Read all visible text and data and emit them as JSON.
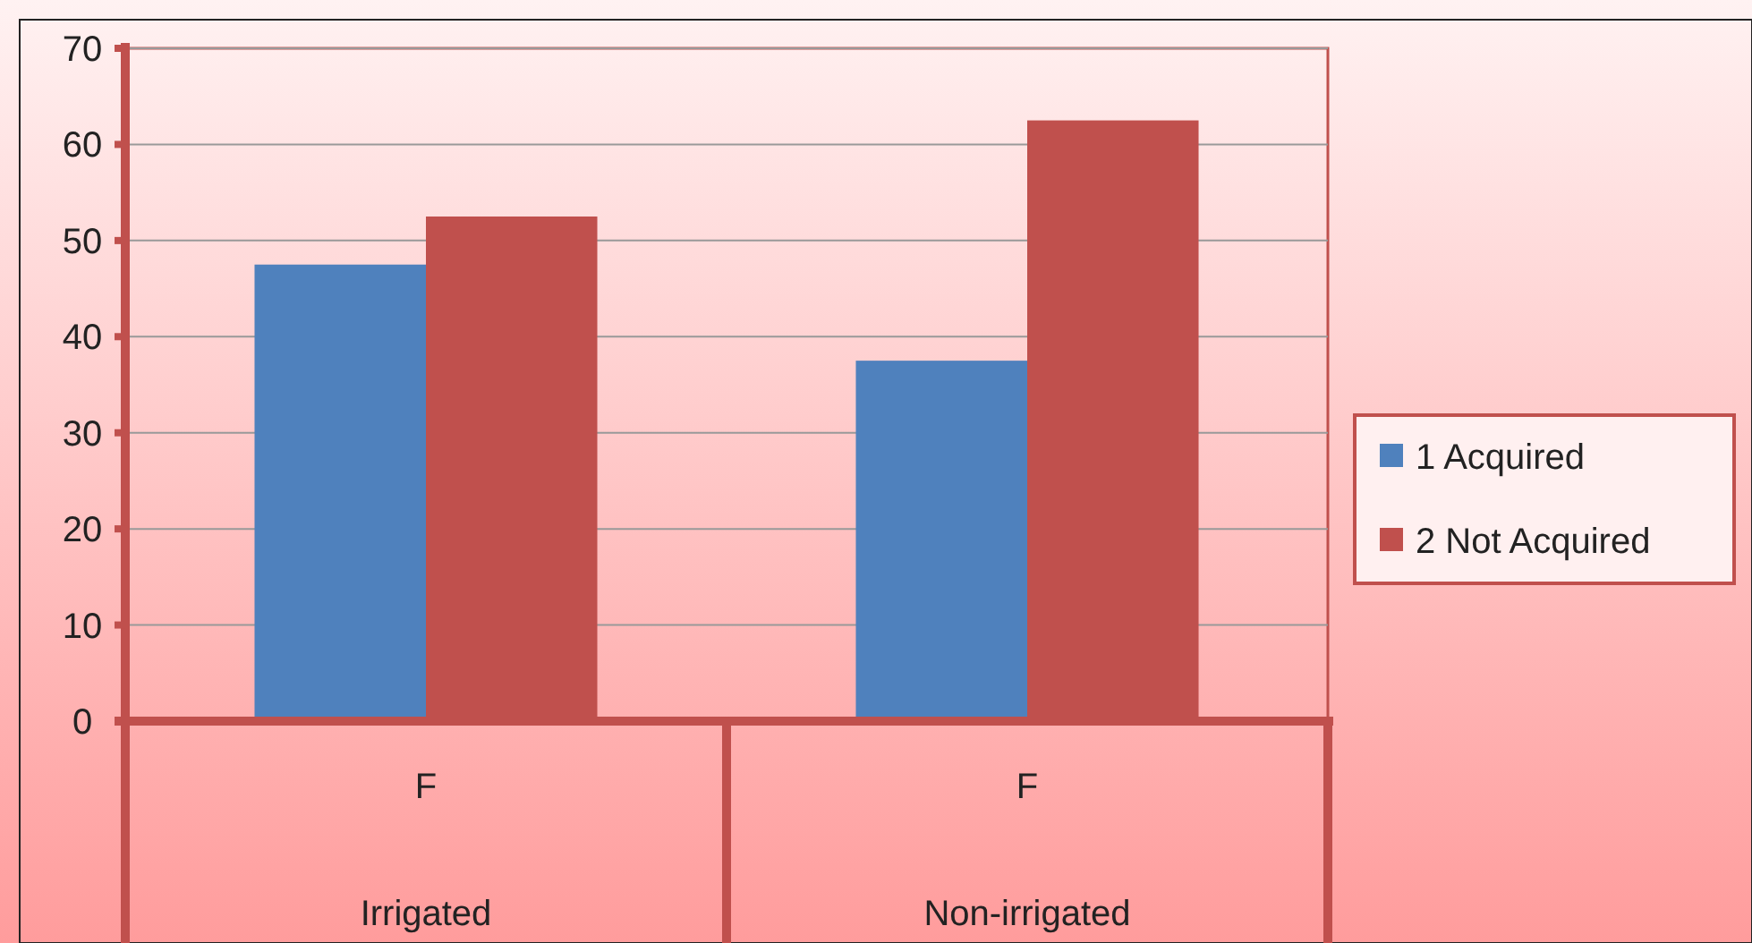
{
  "chart_data": {
    "type": "bar",
    "categories": [
      "Irrigated",
      "Non-irrigated"
    ],
    "series": [
      {
        "name": "1 Acquired",
        "color": "#4f81bd",
        "values": [
          47.5,
          37.5
        ]
      },
      {
        "name": "2 Not Acquired",
        "color": "#c0504d",
        "values": [
          52.5,
          62.5
        ]
      }
    ],
    "ylim": [
      0,
      70
    ],
    "yticks": [
      0,
      10,
      20,
      30,
      40,
      50,
      60,
      70
    ],
    "grid": "y",
    "legend": "right",
    "annotations": [
      "F",
      "F"
    ]
  }
}
